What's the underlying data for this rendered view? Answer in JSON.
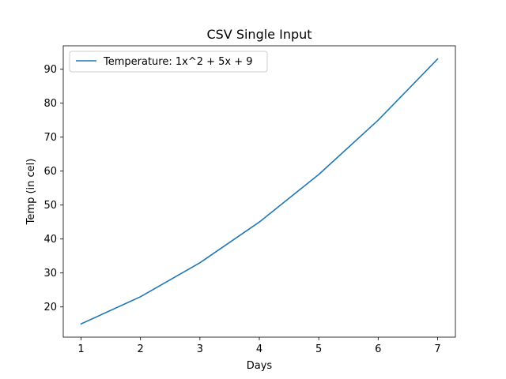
{
  "chart_data": {
    "type": "line",
    "title": "CSV Single Input",
    "xlabel": "Days",
    "ylabel": "Temp (in cel)",
    "x": [
      1,
      2,
      3,
      4,
      5,
      6,
      7
    ],
    "series": [
      {
        "name": "Temperature: 1x^2 + 5x + 9",
        "values": [
          15,
          23,
          33,
          45,
          59,
          75,
          93
        ],
        "color": "#1f77b4"
      }
    ],
    "xticks": [
      1,
      2,
      3,
      4,
      5,
      6,
      7
    ],
    "yticks": [
      20,
      30,
      40,
      50,
      60,
      70,
      80,
      90
    ],
    "xlim": [
      0.7,
      7.3
    ],
    "ylim": [
      11.1,
      96.9
    ],
    "grid": false,
    "legend_position": "upper-left"
  }
}
